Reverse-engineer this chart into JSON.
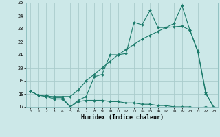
{
  "xlabel": "Humidex (Indice chaleur)",
  "bg_color": "#cce8e8",
  "grid_color": "#aacccc",
  "line_color": "#1a7a6a",
  "xlim": [
    -0.5,
    23.5
  ],
  "ylim": [
    17,
    25
  ],
  "yticks": [
    17,
    18,
    19,
    20,
    21,
    22,
    23,
    24,
    25
  ],
  "xticks": [
    0,
    1,
    2,
    3,
    4,
    5,
    6,
    7,
    8,
    9,
    10,
    11,
    12,
    13,
    14,
    15,
    16,
    17,
    18,
    19,
    20,
    21,
    22,
    23
  ],
  "line1_x": [
    0,
    1,
    2,
    3,
    4,
    5,
    6,
    7,
    8,
    9,
    10,
    11,
    12,
    13,
    14,
    15,
    16,
    17,
    18,
    19,
    20,
    21,
    22,
    23
  ],
  "line1_y": [
    18.2,
    17.9,
    17.8,
    17.6,
    17.6,
    17.0,
    17.5,
    17.8,
    19.3,
    19.5,
    21.0,
    21.0,
    21.1,
    23.5,
    23.3,
    24.4,
    23.1,
    23.1,
    23.15,
    23.2,
    22.9,
    21.2,
    18.0,
    17.0
  ],
  "line2_x": [
    0,
    1,
    2,
    3,
    4,
    5,
    6,
    7,
    8,
    9,
    10,
    11,
    12,
    13,
    14,
    15,
    16,
    17,
    18,
    19,
    20,
    21,
    22,
    23
  ],
  "line2_y": [
    18.2,
    17.9,
    17.8,
    17.8,
    17.8,
    17.8,
    18.3,
    19.0,
    19.5,
    20.0,
    20.5,
    21.0,
    21.4,
    21.8,
    22.2,
    22.5,
    22.8,
    23.1,
    23.4,
    24.8,
    22.9,
    21.3,
    18.1,
    16.9
  ],
  "line3_x": [
    0,
    1,
    2,
    3,
    4,
    5,
    6,
    7,
    8,
    9,
    10,
    11,
    12,
    13,
    14,
    15,
    16,
    17,
    18,
    19,
    20,
    21,
    22,
    23
  ],
  "line3_y": [
    18.2,
    17.9,
    17.9,
    17.7,
    17.7,
    17.0,
    17.4,
    17.5,
    17.5,
    17.5,
    17.4,
    17.4,
    17.3,
    17.3,
    17.2,
    17.2,
    17.1,
    17.1,
    17.0,
    17.0,
    17.0,
    16.9,
    17.0,
    16.9
  ]
}
